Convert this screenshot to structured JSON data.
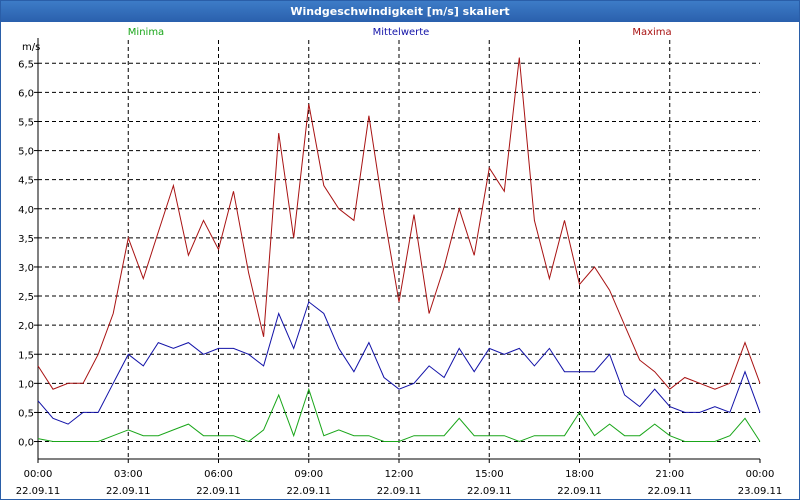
{
  "window": {
    "title": "Windgeschwindigkeit [m/s] skaliert"
  },
  "colors": {
    "minima": "#1aa61a",
    "mittelwerte": "#1212a8",
    "maxima": "#a81212",
    "grid": "#000000"
  },
  "chart_data": {
    "type": "line",
    "title": "Windgeschwindigkeit [m/s] skaliert",
    "ylabel": "m/s",
    "xlabel": "",
    "ylim": [
      -0.3,
      6.9
    ],
    "yticks": [
      "6,5",
      "6,0",
      "5,5",
      "5,0",
      "4,5",
      "4,0",
      "3,5",
      "3,0",
      "2,5",
      "2,0",
      "1,5",
      "1,0",
      "0,5",
      "0,0"
    ],
    "ytick_values": [
      6.5,
      6.0,
      5.5,
      5.0,
      4.5,
      4.0,
      3.5,
      3.0,
      2.5,
      2.0,
      1.5,
      1.0,
      0.5,
      0.0
    ],
    "xticks": [
      {
        "time": "00:00",
        "date": "22.09.11"
      },
      {
        "time": "03:00",
        "date": "22.09.11"
      },
      {
        "time": "06:00",
        "date": "22.09.11"
      },
      {
        "time": "09:00",
        "date": "22.09.11"
      },
      {
        "time": "12:00",
        "date": "22.09.11"
      },
      {
        "time": "15:00",
        "date": "22.09.11"
      },
      {
        "time": "18:00",
        "date": "22.09.11"
      },
      {
        "time": "21:00",
        "date": "22.09.11"
      },
      {
        "time": "00:00",
        "date": "23.09.11"
      }
    ],
    "grid": true,
    "legend": "top",
    "series": [
      {
        "name": "Minima",
        "color": "#1aa61a",
        "x_hours": [
          0,
          0.5,
          1,
          1.5,
          2,
          2.5,
          3,
          3.5,
          4,
          4.5,
          5,
          5.5,
          6,
          6.5,
          7,
          7.5,
          8,
          8.5,
          9,
          9.5,
          10,
          10.5,
          11,
          11.5,
          12,
          12.5,
          13,
          13.5,
          14,
          14.5,
          15,
          15.5,
          16,
          16.5,
          17,
          17.5,
          18,
          18.5,
          19,
          19.5,
          20,
          20.5,
          21,
          21.5,
          22,
          22.5,
          23,
          23.5,
          24
        ],
        "values": [
          0.05,
          0.0,
          0.0,
          0.0,
          0.0,
          0.1,
          0.2,
          0.1,
          0.1,
          0.2,
          0.3,
          0.1,
          0.1,
          0.1,
          0.0,
          0.2,
          0.8,
          0.1,
          0.9,
          0.1,
          0.2,
          0.1,
          0.1,
          0.0,
          0.0,
          0.1,
          0.1,
          0.1,
          0.4,
          0.1,
          0.1,
          0.1,
          0.0,
          0.1,
          0.1,
          0.1,
          0.5,
          0.1,
          0.3,
          0.1,
          0.1,
          0.3,
          0.1,
          0.0,
          0.0,
          0.0,
          0.1,
          0.4,
          0.0
        ]
      },
      {
        "name": "Mittelwerte",
        "color": "#1212a8",
        "x_hours": [
          0,
          0.5,
          1,
          1.5,
          2,
          2.5,
          3,
          3.5,
          4,
          4.5,
          5,
          5.5,
          6,
          6.5,
          7,
          7.5,
          8,
          8.5,
          9,
          9.5,
          10,
          10.5,
          11,
          11.5,
          12,
          12.5,
          13,
          13.5,
          14,
          14.5,
          15,
          15.5,
          16,
          16.5,
          17,
          17.5,
          18,
          18.5,
          19,
          19.5,
          20,
          20.5,
          21,
          21.5,
          22,
          22.5,
          23,
          23.5,
          24
        ],
        "values": [
          0.7,
          0.4,
          0.3,
          0.5,
          0.5,
          1.0,
          1.5,
          1.3,
          1.7,
          1.6,
          1.7,
          1.5,
          1.6,
          1.6,
          1.5,
          1.3,
          2.2,
          1.6,
          2.4,
          2.2,
          1.6,
          1.2,
          1.7,
          1.1,
          0.9,
          1.0,
          1.3,
          1.1,
          1.6,
          1.2,
          1.6,
          1.5,
          1.6,
          1.3,
          1.6,
          1.2,
          1.2,
          1.2,
          1.5,
          0.8,
          0.6,
          0.9,
          0.6,
          0.5,
          0.5,
          0.6,
          0.5,
          1.2,
          0.5
        ]
      },
      {
        "name": "Maxima",
        "color": "#a81212",
        "x_hours": [
          0,
          0.5,
          1,
          1.5,
          2,
          2.5,
          3,
          3.5,
          4,
          4.5,
          5,
          5.5,
          6,
          6.5,
          7,
          7.5,
          8,
          8.5,
          9,
          9.5,
          10,
          10.5,
          11,
          11.5,
          12,
          12.5,
          13,
          13.5,
          14,
          14.5,
          15,
          15.5,
          16,
          16.5,
          17,
          17.5,
          18,
          18.5,
          19,
          19.5,
          20,
          20.5,
          21,
          21.5,
          22,
          22.5,
          23,
          23.5,
          24
        ],
        "values": [
          1.3,
          0.9,
          1.0,
          1.0,
          1.5,
          2.2,
          3.5,
          2.8,
          3.6,
          4.4,
          3.2,
          3.8,
          3.3,
          4.3,
          2.9,
          1.8,
          5.3,
          3.5,
          5.8,
          4.4,
          4.0,
          3.8,
          5.6,
          3.9,
          2.4,
          3.9,
          2.2,
          3.0,
          4.0,
          3.2,
          4.7,
          4.3,
          6.6,
          3.8,
          2.8,
          3.8,
          2.7,
          3.0,
          2.6,
          2.0,
          1.4,
          1.2,
          0.9,
          1.1,
          1.0,
          0.9,
          1.0,
          1.7,
          1.0
        ]
      }
    ]
  }
}
